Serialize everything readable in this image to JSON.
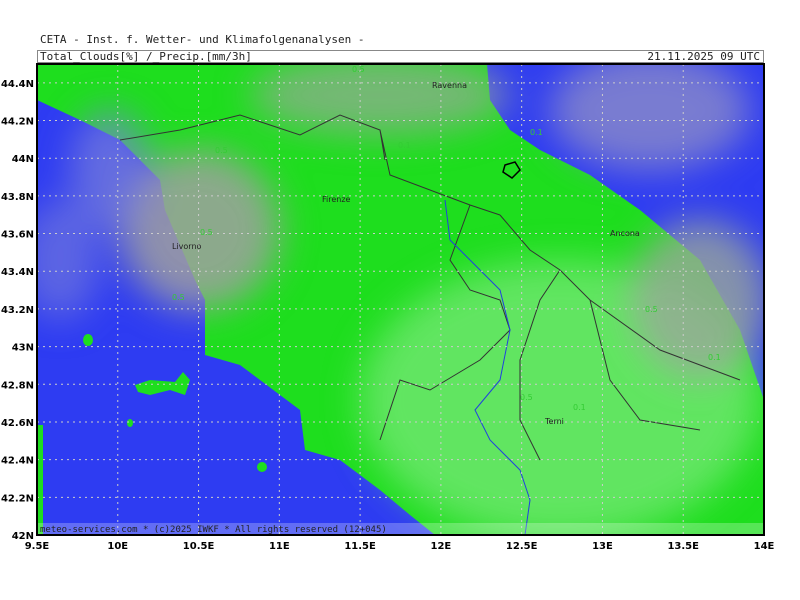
{
  "header": {
    "institute": "CETA - Inst. f. Wetter- und Klimafolgenanalysen -",
    "field": "Total_Clouds[%] /_Precip.[mm/3h]",
    "valid": "21.11.2025 09 UTC"
  },
  "footer": "meteo-services.com * (c)2025 IWKF * All rights reserved (12+045)",
  "axes": {
    "lon_labels": [
      "9.5E",
      "10E",
      "10.5E",
      "11E",
      "11.5E",
      "12E",
      "12.5E",
      "13E",
      "13.5E",
      "14E"
    ],
    "lat_labels": [
      "44.4N",
      "44.2N",
      "44N",
      "43.8N",
      "43.6N",
      "43.4N",
      "43.2N",
      "43N",
      "42.8N",
      "42.6N",
      "42.4N",
      "42.2N",
      "42N"
    ]
  },
  "cities": [
    {
      "name": "Ravenna"
    },
    {
      "name": "Firenze"
    },
    {
      "name": "Livorno"
    },
    {
      "name": "Ancona"
    },
    {
      "name": "Terni"
    }
  ],
  "contour_labels": [
    "0.5",
    "0.1",
    "0.5",
    "0.1",
    "0.5",
    "0.5",
    "0.1",
    "0.5",
    "0.1",
    "0.5"
  ],
  "colors": {
    "sea": "#2e3cf2",
    "land_cloudy": "#1ede1e",
    "land_light": "#6ee86e",
    "cloud_gray": "#9a9a9a",
    "border": "#000000"
  }
}
